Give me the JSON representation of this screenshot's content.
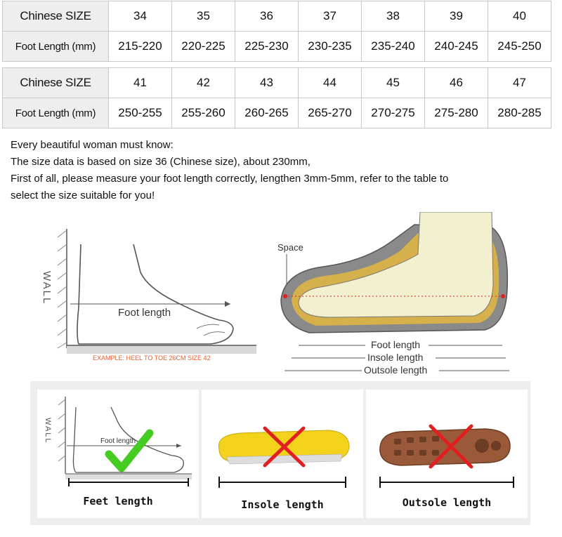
{
  "size_table_1": {
    "row_labels": [
      "Chinese SIZE",
      "Foot Length (mm)"
    ],
    "sizes": [
      "34",
      "35",
      "36",
      "37",
      "38",
      "39",
      "40"
    ],
    "lengths": [
      "215-220",
      "220-225",
      "225-230",
      "230-235",
      "235-240",
      "240-245",
      "245-250"
    ]
  },
  "size_table_2": {
    "row_labels": [
      "Chinese SIZE",
      "Foot Length (mm)"
    ],
    "sizes": [
      "41",
      "42",
      "43",
      "44",
      "45",
      "46",
      "47"
    ],
    "lengths": [
      "250-255",
      "255-260",
      "260-265",
      "265-270",
      "270-275",
      "275-280",
      "280-285"
    ]
  },
  "note": {
    "line1": "Every beautiful woman must know:",
    "line2": "The size data is based on size 36 (Chinese size), about 230mm,",
    "line3": "First of all, please measure your foot length correctly, lengthen 3mm-5mm, refer to the table to",
    "line4": "select the size suitable for you!"
  },
  "diagram_left": {
    "wall": "WALL",
    "foot_length": "Foot length",
    "example": "EXAMPLE: HEEL TO TOE 26CM SIZE 42"
  },
  "diagram_right": {
    "space": "Space",
    "foot_length": "Foot length",
    "insole_length": "Insole length",
    "outsole_length": "Outsole length"
  },
  "panels": {
    "feet": {
      "wall": "WALL",
      "foot_length": "Foot length",
      "label": "Feet length"
    },
    "insole": {
      "label": "Insole length"
    },
    "outsole": {
      "label": "Outsole length"
    }
  },
  "colors": {
    "check": "#44cc22",
    "cross": "#e02020",
    "insole_yellow": "#f2d21a",
    "outsole_brown": "#9a5a3a"
  }
}
